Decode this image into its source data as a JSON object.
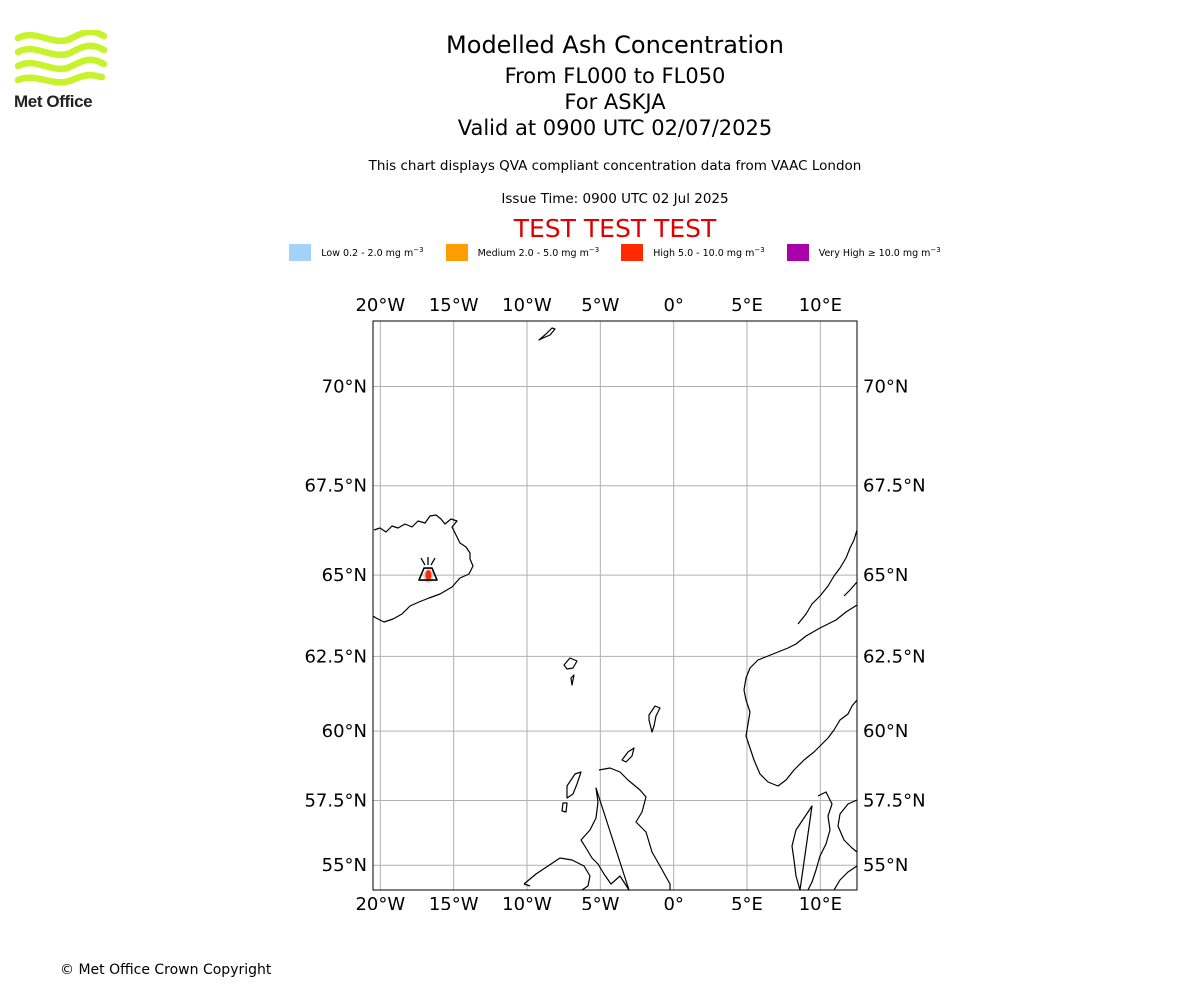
{
  "brand": {
    "name": "Met Office"
  },
  "header": {
    "title": "Modelled Ash Concentration",
    "subtitle_levels": "From FL000 to FL050",
    "subtitle_volcano": "For ASKJA",
    "subtitle_valid": "Valid at 0900 UTC 02/07/2025",
    "description": "This chart displays QVA compliant concentration data from VAAC London",
    "issue_time": "Issue Time: 0900 UTC 02 Jul 2025",
    "test_banner": "TEST TEST TEST"
  },
  "legend": [
    {
      "label": "Low 0.2 - 2.0 mg m",
      "unit_exp": "−3",
      "color": "#a3d3fb"
    },
    {
      "label": "Medium 2.0 - 5.0 mg m",
      "unit_exp": "−3",
      "color": "#ff9d00"
    },
    {
      "label": "High 5.0 - 10.0 mg m",
      "unit_exp": "−3",
      "color": "#ff2a00"
    },
    {
      "label": "Very High  ≥  10.0 mg m",
      "unit_exp": "−3",
      "color": "#aa00aa"
    }
  ],
  "map": {
    "projection": "mercator",
    "lon_range": [
      -20.5,
      12.5
    ],
    "lat_range": [
      54.0,
      71.5
    ],
    "lon_ticks": [
      {
        "value": -20,
        "label": "20°W"
      },
      {
        "value": -15,
        "label": "15°W"
      },
      {
        "value": -10,
        "label": "10°W"
      },
      {
        "value": -5,
        "label": "5°W"
      },
      {
        "value": 0,
        "label": "0°"
      },
      {
        "value": 5,
        "label": "5°E"
      },
      {
        "value": 10,
        "label": "10°E"
      }
    ],
    "lat_ticks": [
      {
        "value": 70,
        "label": "70°N"
      },
      {
        "value": 67.5,
        "label": "67.5°N"
      },
      {
        "value": 65,
        "label": "65°N"
      },
      {
        "value": 62.5,
        "label": "62.5°N"
      },
      {
        "value": 60,
        "label": "60°N"
      },
      {
        "value": 57.5,
        "label": "57.5°N"
      },
      {
        "value": 55,
        "label": "55°N"
      }
    ],
    "grid": true,
    "volcano": {
      "name": "ASKJA",
      "lon": -16.75,
      "lat": 65.03,
      "icon": "volcano-icon"
    },
    "ash_patch": {
      "lon": -16.72,
      "lat": 65.0,
      "concentration": "High",
      "color": "#ff2a00"
    }
  },
  "footer": {
    "copyright": "© Met Office Crown Copyright"
  }
}
